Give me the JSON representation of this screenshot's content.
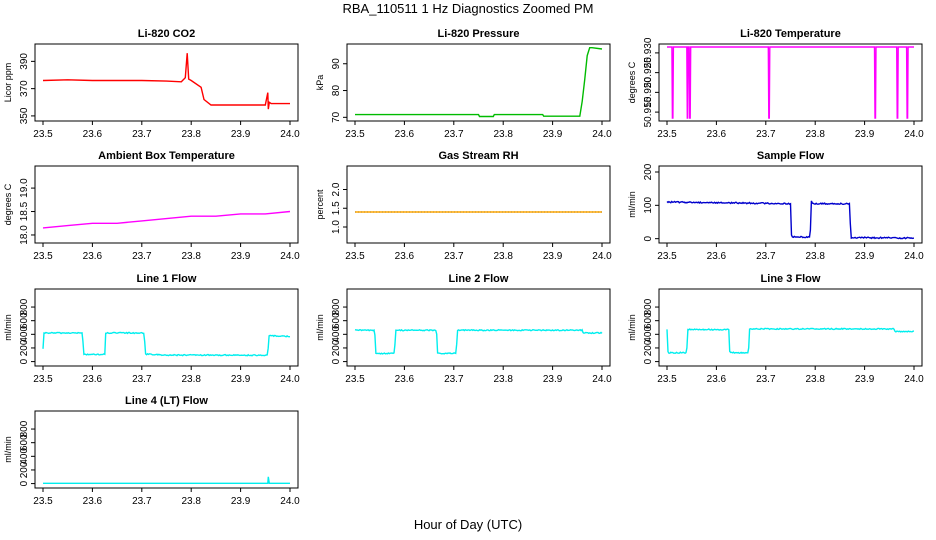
{
  "figure": {
    "title": "RBA_110511  1 Hz Diagnostics Zoomed PM",
    "xlabel": "Hour of Day (UTC)"
  },
  "chart_data": [
    {
      "type": "line",
      "title": "Li-820 CO2",
      "ylabel": "Licor ppm",
      "color": "#ff0000",
      "xlim": [
        23.5,
        24.0
      ],
      "ylim": [
        347,
        402
      ],
      "xticks": [
        "23.5",
        "23.6",
        "23.7",
        "23.8",
        "23.9",
        "24.0"
      ],
      "yticks": [
        350,
        370,
        390
      ],
      "ytick_labels": [
        "350",
        "370",
        "390"
      ],
      "noise": 0.6,
      "x": [
        23.5,
        23.55,
        23.6,
        23.65,
        23.7,
        23.75,
        23.78,
        23.788,
        23.792,
        23.795,
        23.8,
        23.82,
        23.826,
        23.84,
        23.9,
        23.95,
        23.955,
        23.956,
        23.958,
        23.962,
        24.0
      ],
      "y": [
        376,
        376.5,
        376,
        376,
        376,
        375.5,
        375,
        378,
        396,
        377,
        376,
        371,
        362,
        358,
        358,
        358,
        367,
        355,
        360,
        359,
        359
      ]
    },
    {
      "type": "line",
      "title": "Li-820 Pressure",
      "ylabel": "kPa",
      "color": "#00bb00",
      "xlim": [
        23.5,
        24.0
      ],
      "ylim": [
        69,
        97
      ],
      "xticks": [
        "23.5",
        "23.6",
        "23.7",
        "23.8",
        "23.9",
        "24.0"
      ],
      "yticks": [
        70,
        80,
        90
      ],
      "ytick_labels": [
        "70",
        "80",
        "90"
      ],
      "noise": 0.1,
      "x": [
        23.5,
        23.75,
        23.752,
        23.78,
        23.782,
        23.88,
        23.882,
        23.955,
        23.96,
        23.965,
        23.97,
        23.975,
        23.98,
        24.0
      ],
      "y": [
        71,
        71,
        70.3,
        70.3,
        71,
        71,
        70.4,
        70.4,
        76,
        84,
        93,
        96,
        96,
        95.5
      ]
    },
    {
      "type": "line",
      "title": "Li-820 Temperature",
      "ylabel": "degrees C",
      "color": "#ff00ff",
      "xlim": [
        23.5,
        24.0
      ],
      "ylim": [
        50.913,
        50.932
      ],
      "xticks": [
        "23.5",
        "23.6",
        "23.7",
        "23.8",
        "23.9",
        "24.0"
      ],
      "yticks": [
        50.915,
        50.92,
        50.925,
        50.93
      ],
      "ytick_labels": [
        "50.915",
        "50.920",
        "50.925",
        "50.930"
      ],
      "noise": 0,
      "x": [
        23.5,
        23.51,
        23.511,
        23.512,
        23.513,
        23.54,
        23.541,
        23.542,
        23.543,
        23.545,
        23.546,
        23.547,
        23.548,
        23.705,
        23.706,
        23.707,
        23.708,
        23.92,
        23.921,
        23.922,
        23.923,
        23.965,
        23.966,
        23.967,
        23.968,
        23.985,
        23.986,
        23.987,
        23.988,
        24.0
      ],
      "y": [
        50.9315,
        50.9315,
        50.9135,
        50.9135,
        50.9315,
        50.9315,
        50.9135,
        50.9135,
        50.9315,
        50.9315,
        50.9135,
        50.9135,
        50.9315,
        50.9315,
        50.9135,
        50.9135,
        50.9315,
        50.9315,
        50.9135,
        50.9135,
        50.9315,
        50.9315,
        50.9135,
        50.9135,
        50.9315,
        50.9315,
        50.9135,
        50.9135,
        50.9315,
        50.9315
      ]
    },
    {
      "type": "line",
      "title": "Ambient Box Temperature",
      "ylabel": "degrees C",
      "color": "#ff00ff",
      "xlim": [
        23.5,
        24.0
      ],
      "ylim": [
        17.85,
        19.45
      ],
      "xticks": [
        "23.5",
        "23.6",
        "23.7",
        "23.8",
        "23.9",
        "24.0"
      ],
      "yticks": [
        18.0,
        18.5,
        19.0
      ],
      "ytick_labels": [
        "18.0",
        "18.5",
        "19.0"
      ],
      "noise": 0.45,
      "x": [
        23.5,
        23.55,
        23.6,
        23.65,
        23.7,
        23.75,
        23.8,
        23.85,
        23.9,
        23.95,
        24.0
      ],
      "y": [
        18.15,
        18.2,
        18.25,
        18.25,
        18.3,
        18.35,
        18.4,
        18.4,
        18.45,
        18.45,
        18.5
      ]
    },
    {
      "type": "line",
      "title": "Gas Stream RH",
      "ylabel": "percent",
      "color": "#ffa500",
      "dot_color": "#886600",
      "xlim": [
        23.5,
        24.0
      ],
      "ylim": [
        0.6,
        2.6
      ],
      "xticks": [
        "23.5",
        "23.6",
        "23.7",
        "23.8",
        "23.9",
        "24.0"
      ],
      "yticks": [
        1.0,
        1.5,
        2.0
      ],
      "ytick_labels": [
        "1.0",
        "1.5",
        "2.0"
      ],
      "noise": 0.9,
      "x": [
        23.5,
        23.55,
        23.6,
        23.65,
        23.7,
        23.75,
        23.8,
        23.85,
        23.9,
        23.95,
        24.0
      ],
      "y": [
        1.4,
        1.4,
        1.4,
        1.4,
        1.4,
        1.4,
        1.4,
        1.4,
        1.4,
        1.4,
        1.4
      ]
    },
    {
      "type": "line",
      "title": "Sample Flow",
      "ylabel": "ml/min",
      "color": "#0000cc",
      "xlim": [
        23.5,
        24.0
      ],
      "ylim": [
        -10,
        215
      ],
      "xticks": [
        "23.5",
        "23.6",
        "23.7",
        "23.8",
        "23.9",
        "24.0"
      ],
      "yticks": [
        0,
        100,
        200
      ],
      "ytick_labels": [
        "0",
        "100",
        "200"
      ],
      "noise": 2,
      "x": [
        23.5,
        23.6,
        23.7,
        23.75,
        23.752,
        23.79,
        23.792,
        23.795,
        23.87,
        23.872,
        24.0
      ],
      "y": [
        110,
        108,
        106,
        105,
        5,
        5,
        115,
        105,
        105,
        3,
        2
      ]
    },
    {
      "type": "line",
      "title": "Line 1 Flow",
      "ylabel": "ml/min",
      "color": "#00eeee",
      "xlim": [
        23.5,
        24.0
      ],
      "ylim": [
        -50,
        1050
      ],
      "xticks": [
        "23.5",
        "23.6",
        "23.7",
        "23.8",
        "23.9",
        "24.0"
      ],
      "yticks": [
        0,
        200,
        400,
        600,
        800
      ],
      "ytick_labels": [
        "0",
        "200",
        "400",
        "600",
        "800"
      ],
      "noise": 8,
      "x": [
        23.5,
        23.502,
        23.58,
        23.582,
        23.625,
        23.627,
        23.705,
        23.707,
        23.75,
        23.9,
        23.955,
        23.957,
        24.0
      ],
      "y": [
        180,
        420,
        420,
        105,
        105,
        420,
        420,
        110,
        95,
        95,
        90,
        380,
        370
      ]
    },
    {
      "type": "line",
      "title": "Line 2 Flow",
      "ylabel": "ml/min",
      "color": "#00eeee",
      "xlim": [
        23.5,
        24.0
      ],
      "ylim": [
        -50,
        1050
      ],
      "xticks": [
        "23.5",
        "23.6",
        "23.7",
        "23.8",
        "23.9",
        "24.0"
      ],
      "yticks": [
        0,
        200,
        400,
        600,
        800
      ],
      "ytick_labels": [
        "0",
        "200",
        "400",
        "600",
        "800"
      ],
      "noise": 8,
      "x": [
        23.5,
        23.54,
        23.542,
        23.58,
        23.582,
        23.665,
        23.667,
        23.705,
        23.707,
        23.96,
        23.962,
        24.0
      ],
      "y": [
        460,
        460,
        120,
        120,
        460,
        460,
        120,
        120,
        460,
        460,
        420,
        420
      ]
    },
    {
      "type": "line",
      "title": "Line 3 Flow",
      "ylabel": "ml/min",
      "color": "#00eeee",
      "xlim": [
        23.5,
        24.0
      ],
      "ylim": [
        -50,
        1050
      ],
      "xticks": [
        "23.5",
        "23.6",
        "23.7",
        "23.8",
        "23.9",
        "24.0"
      ],
      "yticks": [
        0,
        200,
        400,
        600,
        800
      ],
      "ytick_labels": [
        "0",
        "200",
        "400",
        "600",
        "800"
      ],
      "noise": 8,
      "x": [
        23.5,
        23.502,
        23.54,
        23.542,
        23.625,
        23.627,
        23.665,
        23.667,
        23.96,
        23.962,
        24.0
      ],
      "y": [
        480,
        130,
        130,
        470,
        470,
        130,
        130,
        480,
        480,
        440,
        440
      ]
    },
    {
      "type": "line",
      "title": "Line 4 (LT) Flow",
      "ylabel": "ml/min",
      "color": "#00eeee",
      "xlim": [
        23.5,
        24.0
      ],
      "ylim": [
        -50,
        1050
      ],
      "xticks": [
        "23.5",
        "23.6",
        "23.7",
        "23.8",
        "23.9",
        "24.0"
      ],
      "yticks": [
        0,
        200,
        400,
        600,
        800
      ],
      "ytick_labels": [
        "0",
        "200",
        "400",
        "600",
        "800"
      ],
      "noise": 1,
      "x": [
        23.5,
        23.955,
        23.956,
        23.958,
        23.96,
        24.0
      ],
      "y": [
        5,
        5,
        100,
        5,
        5,
        5
      ]
    }
  ]
}
